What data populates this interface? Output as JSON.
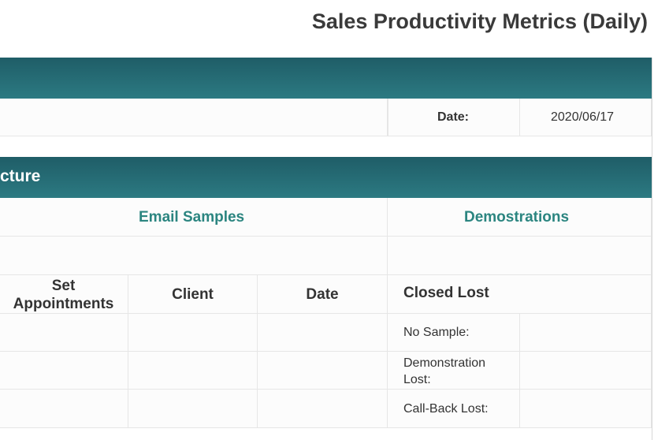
{
  "header": {
    "title": "Sales Productivity Metrics (Daily)"
  },
  "info_row": {
    "date_label": "Date:",
    "date_value": "2020/06/17"
  },
  "section": {
    "title_fragment": "cture"
  },
  "sections": {
    "email_samples": "Email Samples",
    "demonstrations": "Demostrations"
  },
  "columns": {
    "set_appointments": "Set\nAppointments",
    "client": "Client",
    "date": "Date",
    "closed_lost": "Closed Lost"
  },
  "closed_lost_rows": [
    "No Sample:",
    "Demonstration\nLost:",
    "Call-Back Lost:"
  ],
  "colors": {
    "band_dark": "#1f5d67",
    "band_light": "#2c7a82",
    "section_text": "#2b8580"
  }
}
